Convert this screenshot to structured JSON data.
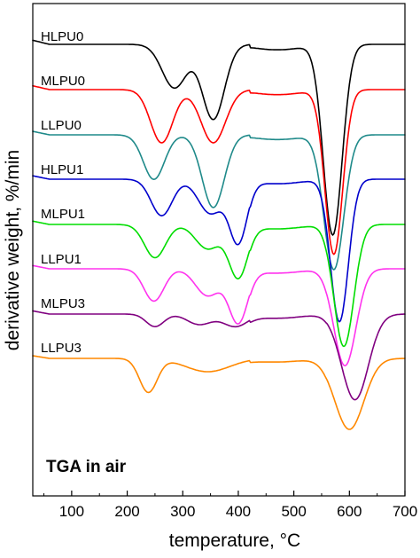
{
  "chart_data": {
    "type": "line",
    "title": "",
    "annotation": "TGA in air",
    "xlabel": "temperature, °C",
    "ylabel": "derivative weight, %/min",
    "xlim": [
      30,
      700
    ],
    "xticks": [
      100,
      200,
      300,
      400,
      500,
      600,
      700
    ],
    "tick_labels": [
      "100",
      "200",
      "300",
      "400",
      "500",
      "600",
      "700"
    ],
    "y_tick_labels_shown": false,
    "grid": false,
    "legend": "inline labels stacked at left of each curve",
    "series": [
      {
        "name": "HLPU0",
        "color": "#000000",
        "baseline": 0.0,
        "peaks": [
          [
            285,
            0.32,
            22
          ],
          [
            355,
            0.55,
            20
          ],
          [
            570,
            1.4,
            17
          ]
        ],
        "tail_start": 628
      },
      {
        "name": "MLPU0",
        "color": "#ff0000",
        "baseline": 0.0,
        "peaks": [
          [
            262,
            0.42,
            20
          ],
          [
            355,
            0.42,
            22
          ],
          [
            572,
            1.3,
            16
          ]
        ],
        "tail_start": 630
      },
      {
        "name": "LLPU0",
        "color": "#1f8a8a",
        "baseline": 0.0,
        "peaks": [
          [
            248,
            0.38,
            19
          ],
          [
            355,
            0.62,
            20
          ],
          [
            572,
            1.15,
            18
          ]
        ],
        "tail_start": 628
      },
      {
        "name": "HLPU1",
        "color": "#0000cc",
        "baseline": 0.0,
        "peaks": [
          [
            262,
            0.32,
            19
          ],
          [
            350,
            0.3,
            22
          ],
          [
            400,
            0.55,
            16
          ],
          [
            582,
            1.25,
            16
          ]
        ],
        "tail_start": 632
      },
      {
        "name": "MLPU1",
        "color": "#00dd00",
        "baseline": 0.0,
        "peaks": [
          [
            250,
            0.3,
            19
          ],
          [
            345,
            0.22,
            22
          ],
          [
            400,
            0.48,
            17
          ],
          [
            590,
            1.1,
            18
          ]
        ],
        "tail_start": 636
      },
      {
        "name": "LLPU1",
        "color": "#ff33ee",
        "baseline": 0.0,
        "peaks": [
          [
            248,
            0.3,
            18
          ],
          [
            345,
            0.25,
            22
          ],
          [
            400,
            0.5,
            17
          ],
          [
            592,
            0.9,
            20
          ]
        ],
        "tail_start": 640
      },
      {
        "name": "MLPU3",
        "color": "#800080",
        "baseline": 0.0,
        "peaks": [
          [
            250,
            0.12,
            16
          ],
          [
            330,
            0.1,
            22
          ],
          [
            395,
            0.12,
            22
          ],
          [
            610,
            0.82,
            24
          ]
        ],
        "tail_start": 648
      },
      {
        "name": "LLPU3",
        "color": "#ff8800",
        "baseline": 0.0,
        "peaks": [
          [
            238,
            0.38,
            16
          ],
          [
            345,
            0.15,
            40
          ],
          [
            600,
            0.8,
            26
          ]
        ],
        "tail_start": 650
      }
    ]
  }
}
